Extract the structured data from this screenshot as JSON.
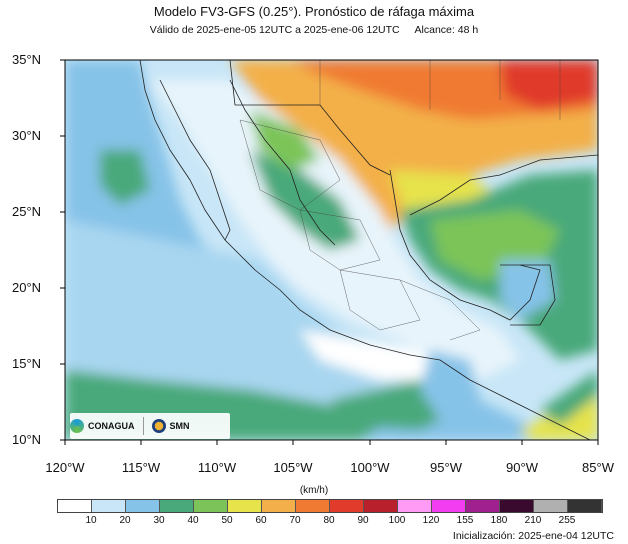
{
  "title": "Modelo FV3-GFS (0.25°). Pronóstico de ráfaga máxima",
  "validity": "Válido de 2025-ene-05 12UTC a 2025-ene-06 12UTC",
  "range": "Alcance: 48 h",
  "lat_labels": [
    "35°N",
    "30°N",
    "25°N",
    "20°N",
    "15°N",
    "10°N"
  ],
  "lon_labels": [
    "120°W",
    "115°W",
    "110°W",
    "105°W",
    "100°W",
    "95°W",
    "90°W",
    "85°W"
  ],
  "unit_label": "(km/h)",
  "colorbar": {
    "ticks": [
      "10",
      "20",
      "30",
      "40",
      "50",
      "60",
      "70",
      "80",
      "90",
      "100",
      "120",
      "155",
      "180",
      "210",
      "255"
    ],
    "colors": [
      "#ffffff",
      "#c8e6f7",
      "#86c3e8",
      "#4aa97a",
      "#7cc459",
      "#e6e34b",
      "#f3b04a",
      "#f07a32",
      "#e03b2b",
      "#b8202c",
      "#ff9bf5",
      "#f23df0",
      "#a0208f",
      "#3a0a2e",
      "#b0b0b0",
      "#333333"
    ]
  },
  "logos": {
    "conagua": "CONAGUA",
    "smn": "SMN"
  },
  "initialization": "Inicialización: 2025-ene-04 12UTC"
}
